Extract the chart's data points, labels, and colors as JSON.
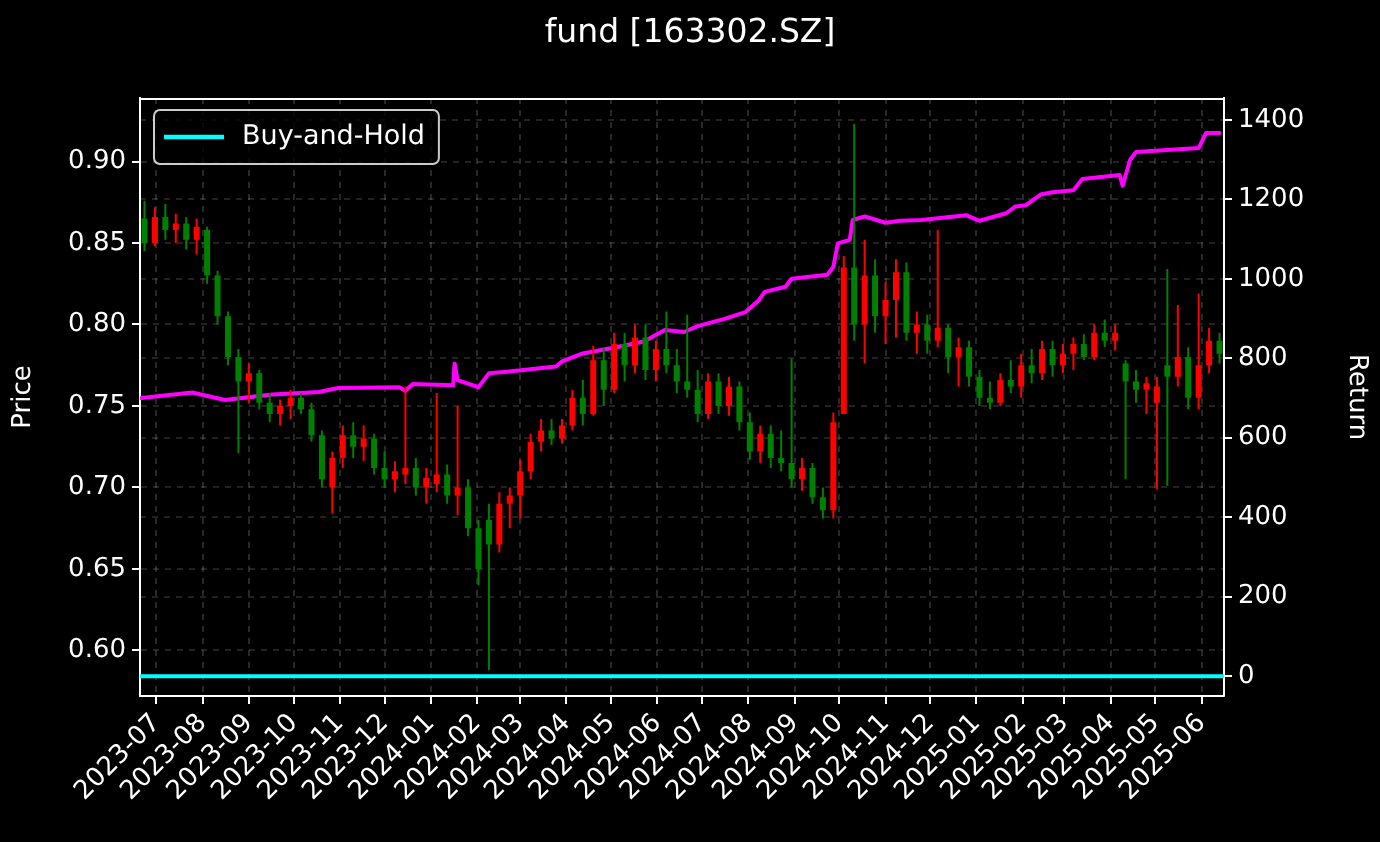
{
  "chart_data": {
    "type": "candlestick",
    "title": "fund [163302.SZ]",
    "ylabel": "Price",
    "y2label": "Return",
    "xlim": [
      "2023-06-20",
      "2025-06-16"
    ],
    "xticks": [
      "2023-07",
      "2023-08",
      "2023-09",
      "2023-10",
      "2023-11",
      "2023-12",
      "2024-01",
      "2024-02",
      "2024-03",
      "2024-04",
      "2024-05",
      "2024-06",
      "2024-07",
      "2024-08",
      "2024-09",
      "2024-10",
      "2024-11",
      "2024-12",
      "2025-01",
      "2025-02",
      "2025-03",
      "2025-04",
      "2025-05",
      "2025-06"
    ],
    "ylim": [
      0.572,
      0.939
    ],
    "yticks": [
      {
        "value": 0.6,
        "label": "0.60"
      },
      0.65,
      {
        "value": 0.7,
        "label": "0.70"
      },
      0.75,
      {
        "value": 0.8,
        "label": "0.80"
      },
      0.85,
      {
        "value": 0.9,
        "label": "0.90"
      }
    ],
    "y2lim": [
      -50,
      1455
    ],
    "y2ticks": [
      0,
      200,
      400,
      600,
      800,
      1000,
      1200,
      1400
    ],
    "grid": true,
    "legend": "top left",
    "series": [
      {
        "x": [
          "2023-06-23",
          "2023-06-30",
          "2023-07-07",
          "2023-07-14",
          "2023-07-21",
          "2023-07-28",
          "2023-08-04",
          "2023-08-11",
          "2023-08-18",
          "2023-08-25",
          "2023-09-01",
          "2023-09-08",
          "2023-09-15",
          "2023-09-22",
          "2023-09-29",
          "2023-10-06",
          "2023-10-13",
          "2023-10-20",
          "2023-10-27",
          "2023-11-03",
          "2023-11-10",
          "2023-11-17",
          "2023-11-24",
          "2023-12-01",
          "2023-12-08",
          "2023-12-15",
          "2023-12-22",
          "2023-12-29",
          "2024-01-05",
          "2024-01-12",
          "2024-01-19",
          "2024-01-26",
          "2024-02-02",
          "2024-02-09",
          "2024-02-16",
          "2024-02-23",
          "2024-03-01",
          "2024-03-08",
          "2024-03-15",
          "2024-03-22",
          "2024-03-29",
          "2024-04-05",
          "2024-04-12",
          "2024-04-19",
          "2024-04-26",
          "2024-05-03",
          "2024-05-10",
          "2024-05-17",
          "2024-05-24",
          "2024-05-31",
          "2024-06-07",
          "2024-06-14",
          "2024-06-21",
          "2024-06-28",
          "2024-07-05",
          "2024-07-12",
          "2024-07-19",
          "2024-07-26",
          "2024-08-02",
          "2024-08-09",
          "2024-08-16",
          "2024-08-23",
          "2024-08-30",
          "2024-09-06",
          "2024-09-13",
          "2024-09-20",
          "2024-09-27",
          "2024-10-04",
          "2024-10-11",
          "2024-10-18",
          "2024-10-25",
          "2024-11-01",
          "2024-11-08",
          "2024-11-15",
          "2024-11-22",
          "2024-11-29",
          "2024-12-06",
          "2024-12-13",
          "2024-12-20",
          "2024-12-27",
          "2025-01-03",
          "2025-01-10",
          "2025-01-17",
          "2025-01-24",
          "2025-01-31",
          "2025-02-07",
          "2025-02-14",
          "2025-02-21",
          "2025-02-28",
          "2025-03-07",
          "2025-03-14",
          "2025-03-21",
          "2025-03-28",
          "2025-04-04",
          "2025-04-11",
          "2025-04-18",
          "2025-04-25",
          "2025-05-02",
          "2025-05-09",
          "2025-05-16",
          "2025-05-23",
          "2025-05-30",
          "2025-06-06",
          "2025-06-13"
        ],
        "ohlc": [
          [
            0.865,
            0.876,
            0.845,
            0.85
          ],
          [
            0.85,
            0.872,
            0.848,
            0.866
          ],
          [
            0.866,
            0.874,
            0.852,
            0.858
          ],
          [
            0.858,
            0.868,
            0.85,
            0.862
          ],
          [
            0.862,
            0.866,
            0.846,
            0.852
          ],
          [
            0.852,
            0.865,
            0.843,
            0.86
          ],
          [
            0.858,
            0.86,
            0.825,
            0.83
          ],
          [
            0.83,
            0.833,
            0.8,
            0.805
          ],
          [
            0.805,
            0.808,
            0.775,
            0.78
          ],
          [
            0.78,
            0.785,
            0.721,
            0.765
          ],
          [
            0.765,
            0.776,
            0.752,
            0.77
          ],
          [
            0.77,
            0.772,
            0.748,
            0.752
          ],
          [
            0.752,
            0.758,
            0.74,
            0.745
          ],
          [
            0.745,
            0.754,
            0.738,
            0.75
          ],
          [
            0.75,
            0.76,
            0.742,
            0.755
          ],
          [
            0.755,
            0.758,
            0.745,
            0.748
          ],
          [
            0.748,
            0.752,
            0.728,
            0.732
          ],
          [
            0.732,
            0.735,
            0.7,
            0.705
          ],
          [
            0.7,
            0.722,
            0.684,
            0.718
          ],
          [
            0.718,
            0.738,
            0.712,
            0.732
          ],
          [
            0.732,
            0.74,
            0.718,
            0.725
          ],
          [
            0.725,
            0.738,
            0.716,
            0.73
          ],
          [
            0.73,
            0.733,
            0.708,
            0.712
          ],
          [
            0.712,
            0.722,
            0.7,
            0.705
          ],
          [
            0.705,
            0.716,
            0.697,
            0.71
          ],
          [
            0.708,
            0.762,
            0.702,
            0.712
          ],
          [
            0.712,
            0.718,
            0.695,
            0.7
          ],
          [
            0.7,
            0.712,
            0.69,
            0.706
          ],
          [
            0.702,
            0.758,
            0.697,
            0.708
          ],
          [
            0.708,
            0.714,
            0.69,
            0.695
          ],
          [
            0.695,
            0.75,
            0.683,
            0.7
          ],
          [
            0.7,
            0.705,
            0.67,
            0.675
          ],
          [
            0.675,
            0.68,
            0.64,
            0.65
          ],
          [
            0.68,
            0.69,
            0.588,
            0.665
          ],
          [
            0.665,
            0.697,
            0.66,
            0.69
          ],
          [
            0.69,
            0.7,
            0.675,
            0.695
          ],
          [
            0.695,
            0.717,
            0.681,
            0.71
          ],
          [
            0.71,
            0.733,
            0.705,
            0.728
          ],
          [
            0.728,
            0.742,
            0.722,
            0.735
          ],
          [
            0.735,
            0.742,
            0.726,
            0.73
          ],
          [
            0.73,
            0.742,
            0.727,
            0.738
          ],
          [
            0.738,
            0.76,
            0.735,
            0.755
          ],
          [
            0.755,
            0.766,
            0.738,
            0.745
          ],
          [
            0.745,
            0.787,
            0.744,
            0.778
          ],
          [
            0.778,
            0.786,
            0.75,
            0.76
          ],
          [
            0.76,
            0.795,
            0.758,
            0.788
          ],
          [
            0.788,
            0.795,
            0.765,
            0.775
          ],
          [
            0.775,
            0.8,
            0.77,
            0.792
          ],
          [
            0.792,
            0.8,
            0.766,
            0.772
          ],
          [
            0.772,
            0.79,
            0.765,
            0.785
          ],
          [
            0.785,
            0.808,
            0.77,
            0.775
          ],
          [
            0.775,
            0.785,
            0.758,
            0.765
          ],
          [
            0.765,
            0.806,
            0.755,
            0.76
          ],
          [
            0.76,
            0.772,
            0.74,
            0.745
          ],
          [
            0.745,
            0.77,
            0.742,
            0.765
          ],
          [
            0.765,
            0.77,
            0.745,
            0.75
          ],
          [
            0.75,
            0.768,
            0.744,
            0.762
          ],
          [
            0.762,
            0.765,
            0.735,
            0.74
          ],
          [
            0.74,
            0.746,
            0.717,
            0.722
          ],
          [
            0.722,
            0.738,
            0.715,
            0.733
          ],
          [
            0.733,
            0.738,
            0.712,
            0.718
          ],
          [
            0.718,
            0.735,
            0.71,
            0.715
          ],
          [
            0.715,
            0.779,
            0.7,
            0.705
          ],
          [
            0.705,
            0.718,
            0.698,
            0.712
          ],
          [
            0.712,
            0.715,
            0.69,
            0.694
          ],
          [
            0.694,
            0.7,
            0.681,
            0.686
          ],
          [
            0.686,
            0.746,
            0.681,
            0.74
          ],
          [
            0.745,
            0.842,
            0.745,
            0.835
          ],
          [
            0.835,
            0.923,
            0.79,
            0.8
          ],
          [
            0.8,
            0.852,
            0.776,
            0.83
          ],
          [
            0.83,
            0.84,
            0.795,
            0.805
          ],
          [
            0.805,
            0.826,
            0.788,
            0.815
          ],
          [
            0.815,
            0.84,
            0.792,
            0.832
          ],
          [
            0.832,
            0.838,
            0.79,
            0.795
          ],
          [
            0.795,
            0.808,
            0.782,
            0.8
          ],
          [
            0.8,
            0.806,
            0.782,
            0.79
          ],
          [
            0.79,
            0.858,
            0.786,
            0.798
          ],
          [
            0.798,
            0.8,
            0.77,
            0.78
          ],
          [
            0.78,
            0.792,
            0.762,
            0.786
          ],
          [
            0.786,
            0.79,
            0.762,
            0.768
          ],
          [
            0.768,
            0.772,
            0.75,
            0.755
          ],
          [
            0.755,
            0.765,
            0.748,
            0.752
          ],
          [
            0.752,
            0.77,
            0.75,
            0.766
          ],
          [
            0.766,
            0.778,
            0.758,
            0.762
          ],
          [
            0.762,
            0.782,
            0.755,
            0.775
          ],
          [
            0.775,
            0.785,
            0.764,
            0.77
          ],
          [
            0.77,
            0.79,
            0.766,
            0.785
          ],
          [
            0.785,
            0.79,
            0.768,
            0.775
          ],
          [
            0.775,
            0.788,
            0.77,
            0.782
          ],
          [
            0.782,
            0.792,
            0.772,
            0.788
          ],
          [
            0.788,
            0.794,
            0.778,
            0.78
          ],
          [
            0.78,
            0.8,
            0.778,
            0.795
          ],
          [
            0.795,
            0.803,
            0.786,
            0.79
          ],
          [
            0.79,
            0.8,
            0.784,
            0.795
          ],
          [
            0.776,
            0.778,
            0.705,
            0.765
          ],
          [
            0.765,
            0.772,
            0.752,
            0.76
          ],
          [
            0.76,
            0.768,
            0.745,
            0.764
          ],
          [
            0.752,
            0.768,
            0.699,
            0.762
          ],
          [
            0.775,
            0.834,
            0.701,
            0.768
          ],
          [
            0.768,
            0.812,
            0.762,
            0.78
          ],
          [
            0.78,
            0.786,
            0.748,
            0.755
          ],
          [
            0.755,
            0.819,
            0.748,
            0.775
          ],
          [
            0.775,
            0.798,
            0.77,
            0.79
          ],
          [
            0.79,
            0.795,
            0.776,
            0.782
          ]
        ],
        "colors": [
          "#008000",
          "#ff0000",
          "#008000",
          "#ff0000",
          "#008000",
          "#ff0000",
          "#008000",
          "#008000",
          "#008000",
          "#008000",
          "#ff0000",
          "#008000",
          "#008000",
          "#ff0000",
          "#ff0000",
          "#008000",
          "#008000",
          "#008000",
          "#ff0000",
          "#ff0000",
          "#008000",
          "#ff0000",
          "#008000",
          "#008000",
          "#ff0000",
          "#ff0000",
          "#008000",
          "#ff0000",
          "#ff0000",
          "#008000",
          "#ff0000",
          "#008000",
          "#008000",
          "#008000",
          "#ff0000",
          "#ff0000",
          "#ff0000",
          "#ff0000",
          "#ff0000",
          "#008000",
          "#ff0000",
          "#ff0000",
          "#008000",
          "#ff0000",
          "#008000",
          "#ff0000",
          "#008000",
          "#ff0000",
          "#008000",
          "#ff0000",
          "#008000",
          "#008000",
          "#008000",
          "#008000",
          "#ff0000",
          "#008000",
          "#ff0000",
          "#008000",
          "#008000",
          "#ff0000",
          "#008000",
          "#008000",
          "#008000",
          "#ff0000",
          "#008000",
          "#008000",
          "#ff0000",
          "#ff0000",
          "#008000",
          "#ff0000",
          "#008000",
          "#ff0000",
          "#ff0000",
          "#008000",
          "#ff0000",
          "#008000",
          "#ff0000",
          "#008000",
          "#ff0000",
          "#008000",
          "#008000",
          "#008000",
          "#ff0000",
          "#008000",
          "#ff0000",
          "#008000",
          "#ff0000",
          "#008000",
          "#ff0000",
          "#ff0000",
          "#008000",
          "#ff0000",
          "#008000",
          "#ff0000",
          "#008000",
          "#008000",
          "#ff0000",
          "#ff0000",
          "#008000",
          "#ff0000",
          "#008000",
          "#ff0000",
          "#ff0000",
          "#008000"
        ]
      },
      {
        "type": "line",
        "color": "#ff00ff",
        "axis": "y2",
        "x": [
          "2023-06-21",
          "2023-07-25",
          "2023-08-16",
          "2023-09-17",
          "2023-10-18",
          "2023-10-31",
          "2023-12-11",
          "2023-12-15",
          "2023-12-20",
          "2024-01-16",
          "2024-01-17",
          "2024-01-19",
          "2024-02-02",
          "2024-02-09",
          "2024-02-29",
          "2024-03-25",
          "2024-03-29",
          "2024-04-12",
          "2024-05-06",
          "2024-05-23",
          "2024-06-06",
          "2024-06-19",
          "2024-06-28",
          "2024-07-16",
          "2024-07-30",
          "2024-08-08",
          "2024-08-12",
          "2024-08-26",
          "2024-08-30",
          "2024-09-23",
          "2024-09-27",
          "2024-09-30",
          "2024-10-08",
          "2024-10-10",
          "2024-10-18",
          "2024-11-01",
          "2024-11-11",
          "2024-11-25",
          "2024-12-25",
          "2025-01-03",
          "2025-01-21",
          "2025-01-27",
          "2025-02-03",
          "2025-02-13",
          "2025-02-21",
          "2025-03-07",
          "2025-03-13",
          "2025-04-07",
          "2025-04-09",
          "2025-04-14",
          "2025-04-18",
          "2025-05-30",
          "2025-06-04",
          "2025-06-13"
        ],
        "values": [
          700,
          714,
          695,
          709,
          715,
          725,
          727,
          718,
          735,
          732,
          787,
          745,
          727,
          762,
          769,
          779,
          792,
          812,
          829,
          842,
          871,
          866,
          881,
          899,
          916,
          946,
          967,
          980,
          1000,
          1010,
          1030,
          1089,
          1098,
          1148,
          1157,
          1141,
          1146,
          1148,
          1160,
          1146,
          1165,
          1182,
          1185,
          1212,
          1218,
          1223,
          1251,
          1261,
          1234,
          1299,
          1319,
          1329,
          1367,
          1367
        ]
      },
      {
        "type": "line",
        "name": "Buy-and-Hold",
        "color": "#00ffff",
        "axis": "y2",
        "x": [
          "2023-06-20",
          "2025-06-16"
        ],
        "values": [
          0,
          0
        ]
      }
    ]
  }
}
